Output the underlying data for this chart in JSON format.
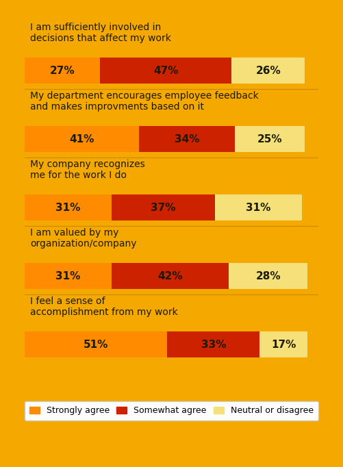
{
  "background_color": "#F5A800",
  "bar_background": "#F5A800",
  "categories": [
    "I am sufficiently involved in\ndecisions that affect my work",
    "My department encourages employee feedback\nand makes improvments based on it",
    "My company recognizes\nme for the work I do",
    "I am valued by my\norganization/company",
    "I feel a sense of\naccomplishment from my work"
  ],
  "strongly_agree": [
    27,
    41,
    31,
    31,
    51
  ],
  "somewhat_agree": [
    47,
    34,
    37,
    42,
    33
  ],
  "neutral": [
    26,
    25,
    31,
    28,
    17
  ],
  "color_strongly": "#F5A800",
  "color_strongly_bar": "#F5A800",
  "color_somewhat": "#CC2200",
  "color_neutral": "#F5E07A",
  "color_strongly_agree_bar": "#FF8C00",
  "bar_height": 0.38,
  "legend_labels": [
    "Strongly agree",
    "Somewhat agree",
    "Neutral or disagree"
  ],
  "text_color": "#1A1A00",
  "separator_color": "#CC8800",
  "figsize": [
    5.01,
    6.82
  ],
  "dpi": 100
}
